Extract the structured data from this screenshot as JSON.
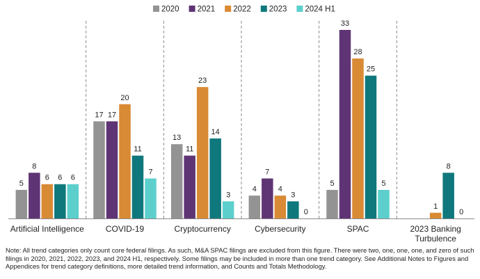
{
  "chart_data": {
    "type": "bar",
    "categories": [
      [
        "Artificial Intelligence"
      ],
      [
        "COVID-19"
      ],
      [
        "Cryptocurrency"
      ],
      [
        "Cybersecurity"
      ],
      [
        "SPAC"
      ],
      [
        "2023 Banking",
        "Turbulence"
      ]
    ],
    "series": [
      {
        "name": "2020",
        "color": "#939393",
        "values": [
          5,
          17,
          13,
          4,
          5,
          null
        ]
      },
      {
        "name": "2021",
        "color": "#5f3474",
        "values": [
          8,
          17,
          11,
          7,
          33,
          null
        ]
      },
      {
        "name": "2022",
        "color": "#d98a34",
        "values": [
          6,
          20,
          23,
          4,
          28,
          1
        ]
      },
      {
        "name": "2023",
        "color": "#0f787c",
        "values": [
          6,
          11,
          14,
          3,
          25,
          8
        ]
      },
      {
        "name": "2024 H1",
        "color": "#5ccfcc",
        "values": [
          6,
          7,
          3,
          0,
          5,
          0
        ]
      }
    ],
    "ylim": [
      0,
      33
    ],
    "legend_position": "top-center",
    "grid": false,
    "group_separators": "dashed"
  },
  "note": "Note: All trend categories only count core federal filings. As such, M&A SPAC filings are excluded from this figure. There were two, one, one, one, and zero of such filings in 2020, 2021, 2022, 2023, and 2024 H1, respectively. Some filings may be included in more than one trend category. See Additional Notes to Figures and Appendices for trend category definitions, more detailed trend information, and Counts and Totals Methodology."
}
